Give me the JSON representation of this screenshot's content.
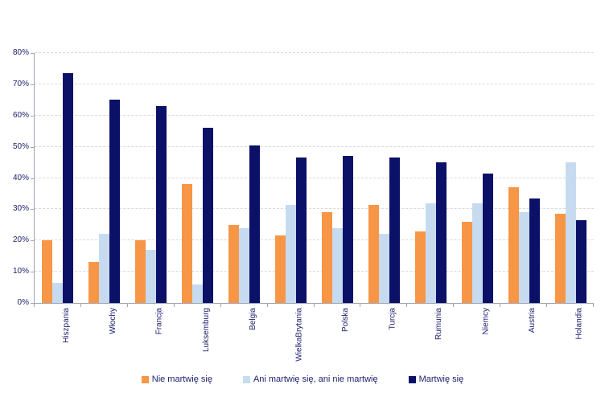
{
  "chart_data": {
    "type": "bar",
    "title": "",
    "categories": [
      "Hiszpania",
      "Włochy",
      "Francja",
      "Luksemburg",
      "Belgia",
      "WielkaBrytania",
      "Polska",
      "Turcja",
      "Rumunia",
      "Niemcy",
      "Austria",
      "Holandia"
    ],
    "series": [
      {
        "name": "Nie martwię się",
        "color": "#F79646",
        "values": [
          20,
          13,
          20,
          38,
          25,
          21.5,
          29,
          31.5,
          23,
          26,
          37,
          28.5
        ]
      },
      {
        "name": "Ani martwię się, ani nie martwię",
        "color": "#C6DBF0",
        "values": [
          6.5,
          22,
          17,
          6,
          24,
          31.5,
          24,
          22,
          32,
          32,
          29,
          45
        ]
      },
      {
        "name": "Martwię się",
        "color": "#0B1166",
        "values": [
          73.5,
          65,
          63,
          56,
          50.5,
          46.5,
          47,
          46.5,
          45,
          41.5,
          33.5,
          26.5
        ]
      }
    ],
    "ylim": [
      0,
      80
    ],
    "ytick_step": 10,
    "ytick_labels": [
      "0%",
      "10%",
      "20%",
      "30%",
      "40%",
      "50%",
      "60%",
      "70%",
      "80%"
    ],
    "xlabel": "",
    "ylabel": "",
    "grid": "horizontal-dashed",
    "legend_position": "bottom"
  },
  "colors": {
    "background": "#FFFFFF",
    "axis": "#A0A4B4",
    "gridline": "#D9D9D9",
    "label_text": "#1F2070"
  }
}
